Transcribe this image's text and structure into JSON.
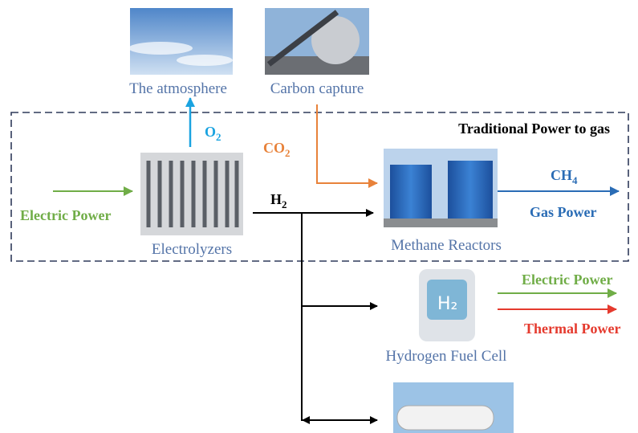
{
  "images": {
    "atmosphere": "The atmosphere",
    "carbon_capture": "Carbon capture",
    "electrolyzers": "Electrolyzers",
    "methane_reactors": "Methane Reactors",
    "fuel_cell": "Hydrogen Fuel Cell"
  },
  "box_title": "Traditional Power to gas",
  "flows": {
    "o2": {
      "base": "O",
      "sub": "2"
    },
    "co2": {
      "base": "CO",
      "sub": "2"
    },
    "h2": {
      "base": "H",
      "sub": "2"
    },
    "ch4": {
      "base": "CH",
      "sub": "4"
    },
    "electric_in": "Electric Power",
    "gas_power": "Gas Power",
    "electric_out": "Electric Power",
    "thermal_out": "Thermal Power"
  }
}
